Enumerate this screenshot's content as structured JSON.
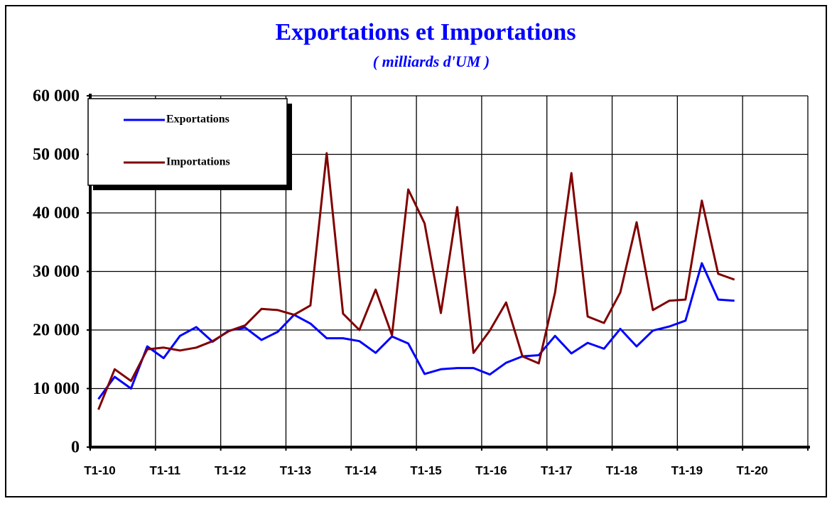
{
  "chart_data": {
    "type": "line",
    "title": "Exportations et Importations",
    "subtitle": "( milliards d'UM )",
    "categories": [
      "T1-10",
      null,
      null,
      null,
      "T1-11",
      null,
      null,
      null,
      "T1-12",
      null,
      null,
      null,
      "T1-13",
      null,
      null,
      null,
      "T1-14",
      null,
      null,
      null,
      "T1-15",
      null,
      null,
      null,
      "T1-16",
      null,
      null,
      null,
      "T1-17",
      null,
      null,
      null,
      "T1-18",
      null,
      null,
      null,
      "T1-19",
      null,
      null,
      null,
      "T1-20",
      null,
      null,
      null
    ],
    "series": [
      {
        "name": "Exportations",
        "color": "#0000ff",
        "values": [
          8200,
          12000,
          10000,
          17200,
          15200,
          19000,
          20500,
          18000,
          19900,
          20400,
          18300,
          19700,
          22600,
          21100,
          18600,
          18600,
          18100,
          16100,
          18900,
          17700,
          12500,
          13300,
          13500,
          13500,
          12400,
          14400,
          15500,
          15700,
          19000,
          16000,
          17800,
          16800,
          20200,
          17200,
          19900,
          20600,
          21600,
          31400,
          25200,
          25000,
          null,
          null,
          null,
          null
        ]
      },
      {
        "name": "Importations",
        "color": "#800000",
        "values": [
          6400,
          13300,
          11300,
          16700,
          17000,
          16500,
          17000,
          18100,
          19800,
          20800,
          23600,
          23400,
          22600,
          24200,
          50200,
          22800,
          20000,
          26900,
          19100,
          44000,
          38200,
          22900,
          41000,
          16100,
          19900,
          24700,
          15500,
          14300,
          26400,
          46800,
          22300,
          21200,
          26400,
          38400,
          23400,
          25000,
          25200,
          42100,
          29600,
          28600,
          null,
          null,
          null,
          null
        ]
      }
    ],
    "ylim": [
      0,
      60000
    ],
    "yticks": [
      0,
      {
        "value": 10000,
        "label": "10 000"
      },
      {
        "value": 20000,
        "label": "20 000"
      },
      {
        "value": 30000,
        "label": "30 000"
      },
      {
        "value": 40000,
        "label": "40 000"
      },
      {
        "value": 50000,
        "label": "50 000"
      },
      {
        "value": 60000,
        "label": "60 000"
      }
    ],
    "grid": true,
    "legend": "upper left"
  }
}
